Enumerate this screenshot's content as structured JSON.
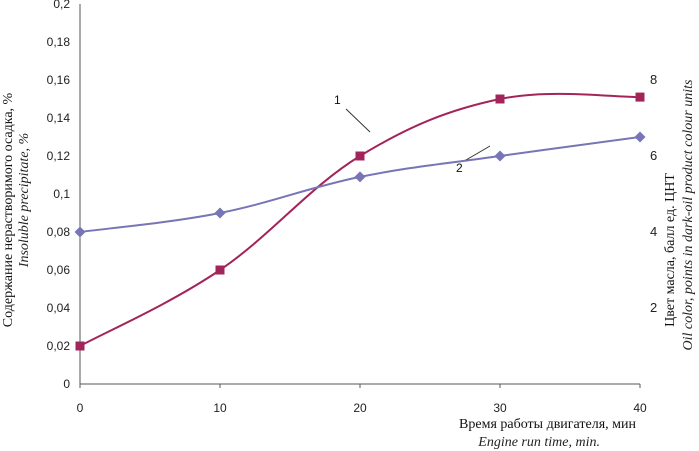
{
  "chart_data": {
    "type": "line",
    "x": [
      0,
      10,
      20,
      30,
      40
    ],
    "xlim": [
      0,
      40
    ],
    "ylim_left": [
      0,
      0.2
    ],
    "ylim_right": [
      0,
      10
    ],
    "x_ticks": [
      "0",
      "10",
      "20",
      "30",
      "40"
    ],
    "y_left_ticks": [
      "0",
      "0,02",
      "0,04",
      "0,06",
      "0,08",
      "0,1",
      "0,12",
      "0,14",
      "0,16",
      "0,18",
      "0,2"
    ],
    "y_right_ticks": [
      "2",
      "4",
      "6",
      "8"
    ],
    "xlabel": "Время работы двигателя, мин",
    "xlabel_en": "Engine run time, min.",
    "ylabel_left": "Содержание нерастворимого осадка, %",
    "ylabel_left_en": "Insoluble precipitate, %",
    "ylabel_right": "Цвет масла, балл ед. ЦНТ",
    "ylabel_right_en": "Oil color, points in dark-oil product colour units",
    "grid": false,
    "series": [
      {
        "name": "1",
        "axis": "left",
        "marker": "square",
        "color": "#a3245a",
        "values": [
          0.02,
          0.06,
          0.12,
          0.15,
          0.151
        ]
      },
      {
        "name": "2",
        "axis": "left",
        "marker": "diamond",
        "color": "#7775b5",
        "values": [
          0.08,
          0.09,
          0.109,
          0.12,
          0.13
        ]
      }
    ]
  }
}
